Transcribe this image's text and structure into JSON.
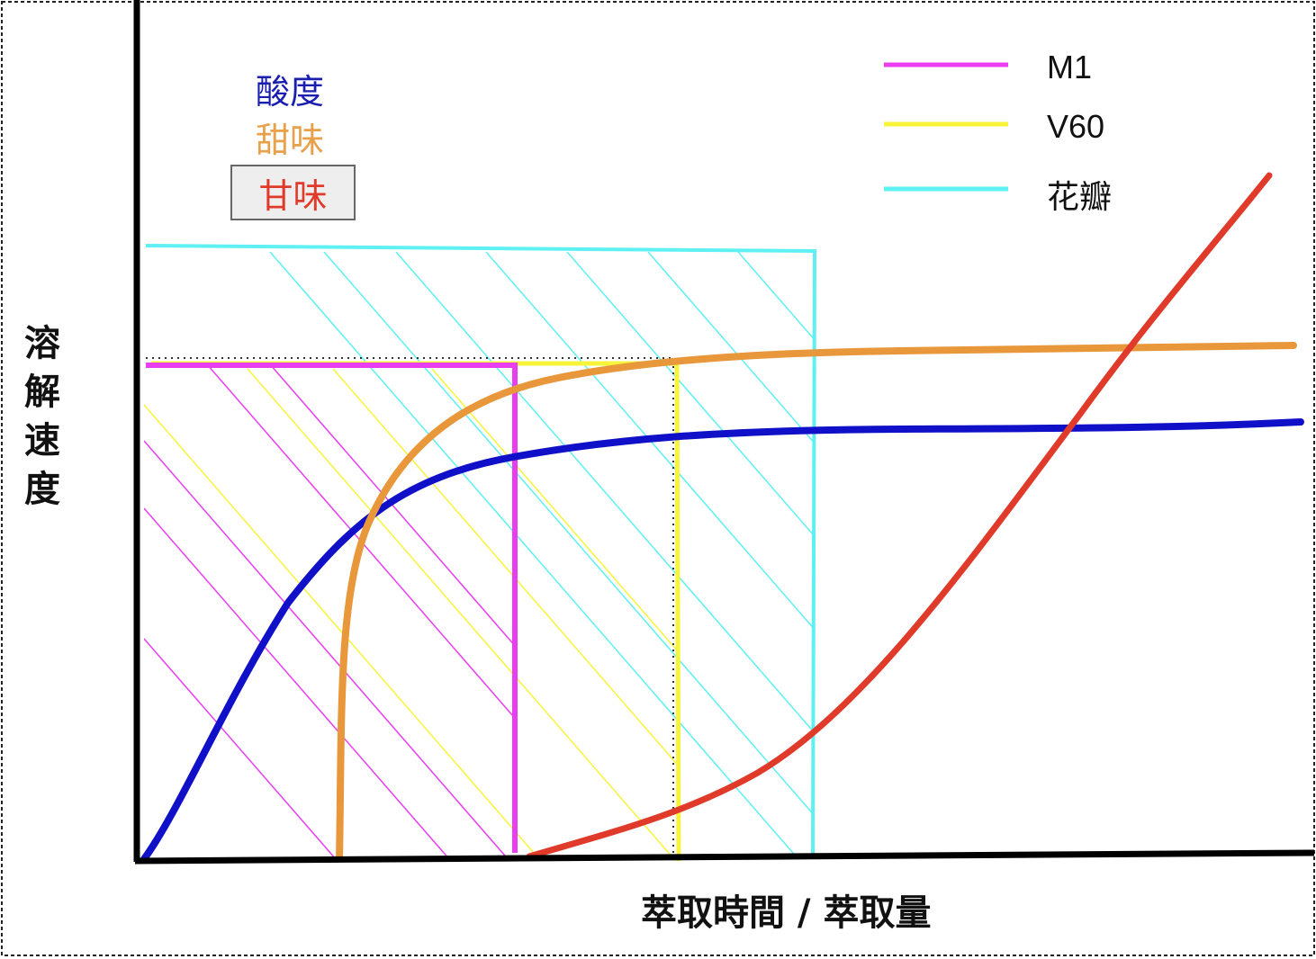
{
  "title_labels": {
    "acidity": "酸度",
    "sweetness": "甜味",
    "sweet_aftertaste": "甘味"
  },
  "axes": {
    "ylabel": "溶解速度",
    "xlabel": "萃取時間 / 萃取量"
  },
  "legend": [
    {
      "label": "M1",
      "color": "#e83ef0"
    },
    {
      "label": "V60",
      "color": "#f7f43a"
    },
    {
      "label": "花瓣",
      "color": "#5ef0f3"
    }
  ],
  "colors": {
    "acidity": "#1010c8",
    "sweetness": "#e8973a",
    "sweet_aftertaste": "#e03a2a",
    "axis": "#000000"
  }
}
